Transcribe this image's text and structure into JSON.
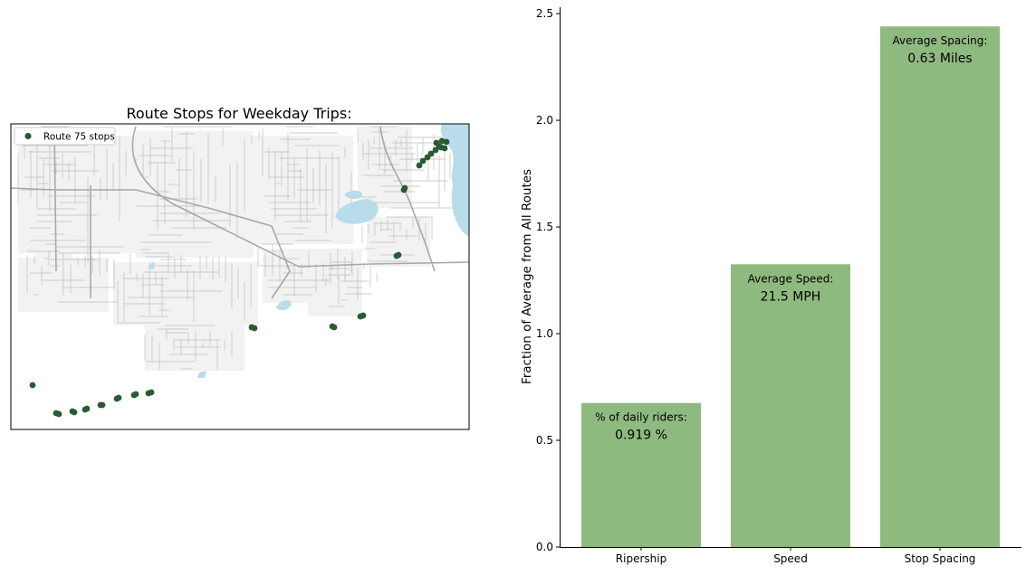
{
  "chart_data": [
    {
      "type": "scatter",
      "title": "Route Stops for Weekday Trips:",
      "legend": {
        "label": "Route 75 stops",
        "placement": "top-left"
      },
      "colors": {
        "stops": "#2a5a32",
        "water": "#b8dcea",
        "roads": "#bdbdbd",
        "land": "#f2f2f2"
      },
      "grid": false
    },
    {
      "type": "bar",
      "title": "",
      "xlabel": "",
      "ylabel": "Fraction of Average from All Routes",
      "ylim": [
        0,
        2.53
      ],
      "yticks": [
        "0.0",
        "0.5",
        "1.0",
        "1.5",
        "2.0",
        "2.5"
      ],
      "categories": [
        "Ripership",
        "Speed",
        "Stop Spacing"
      ],
      "values": [
        0.675,
        1.325,
        2.44
      ],
      "annotations": [
        {
          "label": "% of daily riders:",
          "value": "0.919 %"
        },
        {
          "label": "Average Speed:",
          "value": "21.5 MPH"
        },
        {
          "label": "Average Spacing:",
          "value": "0.63 Miles"
        }
      ],
      "bar_color": "#8fba7f",
      "grid": false
    }
  ]
}
